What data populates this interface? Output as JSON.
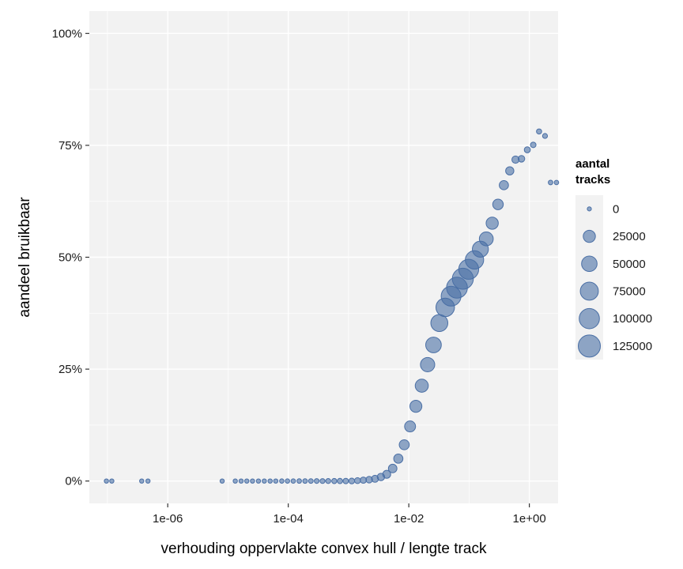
{
  "chart_data": {
    "type": "scatter",
    "title": "",
    "xlabel": "verhouding oppervlakte convex hull / lengte track",
    "ylabel": "aandeel bruikbaar",
    "x_scale": "log10",
    "xlim": [
      5e-08,
      3.0
    ],
    "ylim": [
      -0.05,
      1.05
    ],
    "x_ticks": [
      {
        "value": 1e-06,
        "label": "1e-06"
      },
      {
        "value": 0.0001,
        "label": "1e-04"
      },
      {
        "value": 0.01,
        "label": "1e-02"
      },
      {
        "value": 1,
        "label": "1e+00"
      }
    ],
    "y_ticks": [
      {
        "value": 0,
        "label": "0%"
      },
      {
        "value": 0.25,
        "label": "25%"
      },
      {
        "value": 0.5,
        "label": "50%"
      },
      {
        "value": 0.75,
        "label": "75%"
      },
      {
        "value": 1.0,
        "label": "100%"
      }
    ],
    "grid": true,
    "point_color": "#4a6fa5",
    "panel_color": "#f2f2f2",
    "size_legend": {
      "title_lines": [
        "aantal",
        "tracks"
      ],
      "position": "right",
      "entries": [
        {
          "label": "0",
          "value": 0
        },
        {
          "label": "25000",
          "value": 25000
        },
        {
          "label": "50000",
          "value": 50000
        },
        {
          "label": "75000",
          "value": 75000
        },
        {
          "label": "100000",
          "value": 100000
        },
        {
          "label": "125000",
          "value": 125000
        }
      ]
    },
    "points": [
      {
        "x": 9.6e-08,
        "y": 0.0,
        "n": 10
      },
      {
        "x": 1.18e-07,
        "y": 0.0,
        "n": 10
      },
      {
        "x": 3.7e-07,
        "y": 0.0,
        "n": 10
      },
      {
        "x": 4.7e-07,
        "y": 0.0,
        "n": 10
      },
      {
        "x": 8e-06,
        "y": 0.0,
        "n": 10
      },
      {
        "x": 1.32e-05,
        "y": 0.0,
        "n": 10
      },
      {
        "x": 1.65e-05,
        "y": 0.0,
        "n": 10
      },
      {
        "x": 2.05e-05,
        "y": 0.0,
        "n": 10
      },
      {
        "x": 2.55e-05,
        "y": 0.0,
        "n": 10
      },
      {
        "x": 3.2e-05,
        "y": 0.0,
        "n": 10
      },
      {
        "x": 4e-05,
        "y": 0.0,
        "n": 10
      },
      {
        "x": 5e-05,
        "y": 0.0,
        "n": 20
      },
      {
        "x": 6.2e-05,
        "y": 0.0,
        "n": 20
      },
      {
        "x": 7.8e-05,
        "y": 0.0,
        "n": 30
      },
      {
        "x": 9.7e-05,
        "y": 0.0,
        "n": 40
      },
      {
        "x": 0.000121,
        "y": 0.0,
        "n": 50
      },
      {
        "x": 0.000152,
        "y": 0.0,
        "n": 70
      },
      {
        "x": 0.00019,
        "y": 0.0,
        "n": 100
      },
      {
        "x": 0.000237,
        "y": 0.0,
        "n": 130
      },
      {
        "x": 0.000296,
        "y": 0.0,
        "n": 180
      },
      {
        "x": 0.00037,
        "y": 0.0,
        "n": 240
      },
      {
        "x": 0.00046,
        "y": 0.0,
        "n": 320
      },
      {
        "x": 0.00058,
        "y": 0.0,
        "n": 430
      },
      {
        "x": 0.00072,
        "y": 0.0,
        "n": 570
      },
      {
        "x": 0.0009,
        "y": 0.0,
        "n": 760
      },
      {
        "x": 0.00113,
        "y": 0.0,
        "n": 1000
      },
      {
        "x": 0.00141,
        "y": 0.001,
        "n": 1350
      },
      {
        "x": 0.00176,
        "y": 0.002,
        "n": 1800
      },
      {
        "x": 0.0022,
        "y": 0.003,
        "n": 2400
      },
      {
        "x": 0.00275,
        "y": 0.005,
        "n": 3200
      },
      {
        "x": 0.00345,
        "y": 0.009,
        "n": 4300
      },
      {
        "x": 0.0043,
        "y": 0.015,
        "n": 5700
      },
      {
        "x": 0.0054,
        "y": 0.028,
        "n": 7600
      },
      {
        "x": 0.0067,
        "y": 0.05,
        "n": 10000
      },
      {
        "x": 0.0084,
        "y": 0.081,
        "n": 13500
      },
      {
        "x": 0.0105,
        "y": 0.122,
        "n": 18000
      },
      {
        "x": 0.0131,
        "y": 0.167,
        "n": 24000
      },
      {
        "x": 0.0164,
        "y": 0.213,
        "n": 31000
      },
      {
        "x": 0.0205,
        "y": 0.26,
        "n": 40000
      },
      {
        "x": 0.0257,
        "y": 0.304,
        "n": 51000
      },
      {
        "x": 0.0321,
        "y": 0.353,
        "n": 64000
      },
      {
        "x": 0.0402,
        "y": 0.388,
        "n": 80000
      },
      {
        "x": 0.0503,
        "y": 0.413,
        "n": 95000
      },
      {
        "x": 0.063,
        "y": 0.432,
        "n": 108000
      },
      {
        "x": 0.0788,
        "y": 0.452,
        "n": 110000
      },
      {
        "x": 0.0986,
        "y": 0.473,
        "n": 97000
      },
      {
        "x": 0.123,
        "y": 0.494,
        "n": 78000
      },
      {
        "x": 0.154,
        "y": 0.518,
        "n": 55000
      },
      {
        "x": 0.193,
        "y": 0.541,
        "n": 37000
      },
      {
        "x": 0.242,
        "y": 0.576,
        "n": 25000
      },
      {
        "x": 0.302,
        "y": 0.618,
        "n": 16000
      },
      {
        "x": 0.378,
        "y": 0.661,
        "n": 10000
      },
      {
        "x": 0.473,
        "y": 0.693,
        "n": 6500
      },
      {
        "x": 0.59,
        "y": 0.718,
        "n": 3900
      },
      {
        "x": 0.74,
        "y": 0.72,
        "n": 2400
      },
      {
        "x": 0.925,
        "y": 0.74,
        "n": 1400
      },
      {
        "x": 1.16,
        "y": 0.751,
        "n": 800
      },
      {
        "x": 1.45,
        "y": 0.781,
        "n": 450
      },
      {
        "x": 1.82,
        "y": 0.771,
        "n": 250
      },
      {
        "x": 2.25,
        "y": 0.667,
        "n": 100
      },
      {
        "x": 2.82,
        "y": 0.667,
        "n": 50
      }
    ]
  }
}
